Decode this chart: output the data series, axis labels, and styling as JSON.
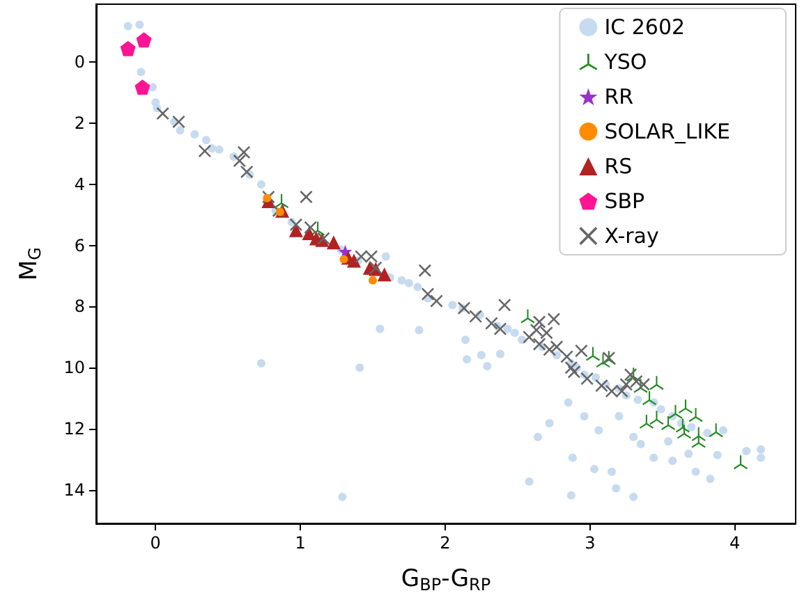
{
  "chart_data": {
    "type": "scatter",
    "xlabel": "G$_{BP}$-G$_{RP}$",
    "ylabel": "M$_{G}$",
    "xlim": [
      -0.41,
      4.42
    ],
    "xticks": [
      0,
      1,
      2,
      3,
      4
    ],
    "ylim": [
      15.1,
      -1.9
    ],
    "yticks": [
      0,
      2,
      4,
      6,
      8,
      10,
      12,
      14
    ],
    "legend": "top right",
    "series": [
      {
        "name": "IC 2602",
        "color": "#c6dbef",
        "marker": "circle",
        "x": [
          -0.19,
          -0.11,
          -0.1,
          -0.02,
          0,
          0.01,
          0.13,
          0.17,
          0.27,
          0.35,
          0.39,
          0.44,
          0.54,
          0.65,
          0.73,
          0.83,
          0.94,
          1.13,
          1.28,
          1.4,
          1.59,
          1.62,
          1.7,
          1.75,
          1.81,
          1.88,
          2.05,
          2.12,
          1.55,
          2.24,
          2.36,
          2.43,
          2.48,
          2.53,
          2.67,
          2.77,
          2.87,
          2.91,
          2.96,
          3.04,
          3.11,
          3.2,
          3.25,
          3.33,
          3.44,
          3.49,
          3.57,
          3.63,
          3.7,
          3.81,
          3.92,
          4.08,
          4.18,
          4.18,
          0.73,
          1.29,
          1.41,
          1.82,
          2.15,
          2.25,
          2.38,
          2.58,
          2.64,
          2.87,
          2.88,
          3.03,
          3.18,
          3.3,
          3.15,
          3.35,
          3.44,
          3.57,
          3.68,
          3.73,
          3.83,
          3.88,
          3.54,
          2.29,
          2.14,
          2.72,
          2.85,
          2.96,
          3.06,
          3.2,
          3.3
        ],
        "values": [
          -1.18,
          -1.23,
          0.32,
          0.82,
          1.32,
          1.5,
          1.95,
          2.23,
          2.36,
          2.55,
          2.82,
          2.86,
          3.09,
          3.68,
          4.0,
          4.86,
          5.23,
          5.77,
          6.14,
          6.5,
          6.36,
          7.05,
          7.14,
          7.23,
          7.36,
          7.73,
          7.95,
          8.05,
          8.73,
          8.27,
          8.64,
          8.73,
          8.86,
          9.09,
          9.32,
          9.59,
          9.86,
          10.0,
          10.23,
          10.32,
          10.55,
          10.68,
          10.91,
          11.05,
          11.14,
          11.36,
          11.59,
          11.82,
          11.95,
          12.14,
          12.05,
          12.73,
          12.68,
          12.95,
          9.86,
          14.23,
          10.0,
          8.77,
          9.73,
          9.59,
          9.55,
          13.73,
          12.27,
          14.18,
          12.95,
          13.32,
          13.95,
          14.23,
          13.41,
          12.5,
          12.95,
          13.05,
          12.82,
          13.41,
          13.64,
          12.86,
          12.41,
          9.95,
          9.09,
          11.82,
          11.14,
          11.59,
          12.05,
          11.59,
          12.27
        ]
      },
      {
        "name": "YSO",
        "color": "#228b22",
        "x": [
          0.87,
          1.12,
          2.57,
          3.02,
          3.09,
          3.13,
          3.3,
          3.35,
          3.46,
          3.41,
          3.59,
          3.66,
          3.73,
          3.39,
          3.46,
          3.54,
          3.64,
          3.65,
          3.75,
          3.75,
          3.87,
          4.04
        ],
        "values": [
          4.55,
          5.45,
          8.32,
          9.55,
          9.77,
          9.68,
          10.23,
          10.6,
          10.5,
          11.0,
          11.45,
          11.27,
          11.55,
          11.77,
          11.64,
          11.82,
          11.9,
          12.1,
          12.18,
          12.4,
          12.05,
          13.1
        ]
      },
      {
        "name": "RR",
        "color": "#9932cc",
        "marker": "star",
        "x": [
          1.31
        ],
        "values": [
          6.2
        ]
      },
      {
        "name": "SOLAR_LIKE",
        "color": "#ff8c00",
        "marker": "circle",
        "x": [
          0.77,
          0.86,
          1.3,
          1.5
        ],
        "values": [
          4.45,
          4.9,
          6.45,
          7.14
        ]
      },
      {
        "name": "RS",
        "color": "#b22222",
        "marker": "triangle",
        "x": [
          0.78,
          0.875,
          0.97,
          1.06,
          1.11,
          1.15,
          1.23,
          1.33,
          1.37,
          1.48,
          1.52,
          1.58
        ],
        "values": [
          4.55,
          4.86,
          5.5,
          5.6,
          5.77,
          5.82,
          5.9,
          6.4,
          6.5,
          6.73,
          6.77,
          6.95
        ]
      },
      {
        "name": "SBP",
        "color": "#ff1493",
        "x": [
          -0.19,
          -0.08,
          -0.09
        ],
        "values": [
          -0.45,
          -0.73,
          0.82
        ]
      },
      {
        "name": "X-ray",
        "color": "#666666",
        "marker": "cross",
        "x": [
          0.05,
          0.16,
          0.34,
          0.61,
          0.58,
          0.63,
          0.78,
          1.04,
          0.85,
          0.97,
          1.07,
          1.16,
          1.42,
          1.49,
          1.52,
          1.86,
          1.88,
          1.94,
          2.13,
          2.21,
          2.32,
          2.38,
          2.41,
          2.58,
          2.63,
          2.65,
          2.75,
          2.7,
          2.65,
          2.72,
          2.77,
          2.84,
          2.87,
          2.89,
          2.94,
          2.98,
          3.08,
          3.13,
          3.15,
          3.22,
          3.25,
          3.28,
          3.32,
          3.37
        ],
        "values": [
          1.68,
          1.95,
          2.91,
          2.95,
          3.23,
          3.59,
          4.41,
          4.41,
          4.86,
          5.32,
          5.41,
          5.77,
          6.36,
          6.36,
          6.73,
          6.82,
          7.59,
          7.82,
          8.05,
          8.32,
          8.55,
          8.73,
          7.95,
          9.0,
          8.77,
          8.5,
          8.41,
          8.86,
          9.23,
          9.41,
          9.32,
          9.64,
          10.0,
          10.14,
          9.45,
          10.36,
          10.59,
          9.68,
          10.77,
          10.77,
          10.55,
          10.23,
          10.45,
          10.55
        ]
      }
    ]
  }
}
